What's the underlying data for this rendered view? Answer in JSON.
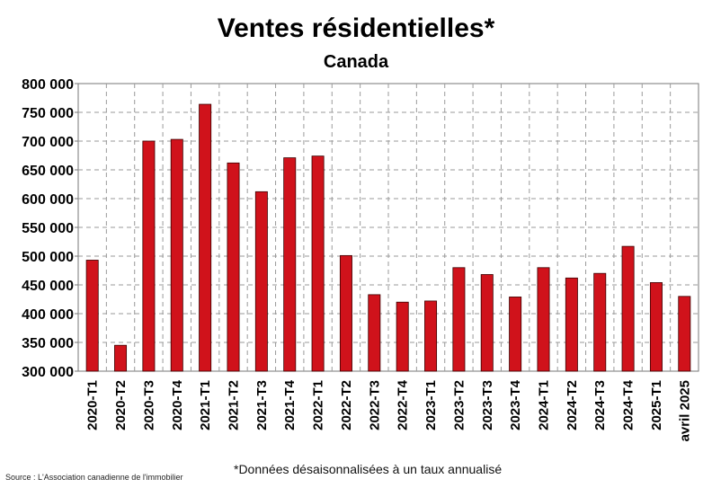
{
  "chart_data": {
    "type": "bar",
    "title": "Ventes résidentielles*",
    "subtitle": "Canada",
    "categories": [
      "2020-T1",
      "2020-T2",
      "2020-T3",
      "2020-T4",
      "2021-T1",
      "2021-T2",
      "2021-T3",
      "2021-T4",
      "2022-T1",
      "2022-T2",
      "2022-T3",
      "2022-T4",
      "2023-T1",
      "2023-T2",
      "2023-T3",
      "2023-T4",
      "2024-T1",
      "2024-T2",
      "2024-T3",
      "2024-T4",
      "2025-T1",
      "avril 2025"
    ],
    "values": [
      493000,
      345000,
      700000,
      703000,
      764000,
      662000,
      612000,
      671000,
      674000,
      501000,
      433000,
      420000,
      422000,
      480000,
      468000,
      429000,
      480000,
      462000,
      470000,
      517000,
      454000,
      430000
    ],
    "ylim": [
      300000,
      800000
    ],
    "yticks": [
      "300 000",
      "350 000",
      "400 000",
      "450 000",
      "500 000",
      "550 000",
      "600 000",
      "650 000",
      "700 000",
      "750 000",
      "800 000"
    ],
    "ytick_values": [
      300000,
      350000,
      400000,
      450000,
      500000,
      550000,
      600000,
      650000,
      700000,
      750000,
      800000
    ],
    "grid": true,
    "bar_color": "#d0121b"
  },
  "footer": {
    "source": "Source : L'Association canadienne de l'immobilier",
    "note": "*Données désaisonnalisées à un taux annualisé"
  }
}
